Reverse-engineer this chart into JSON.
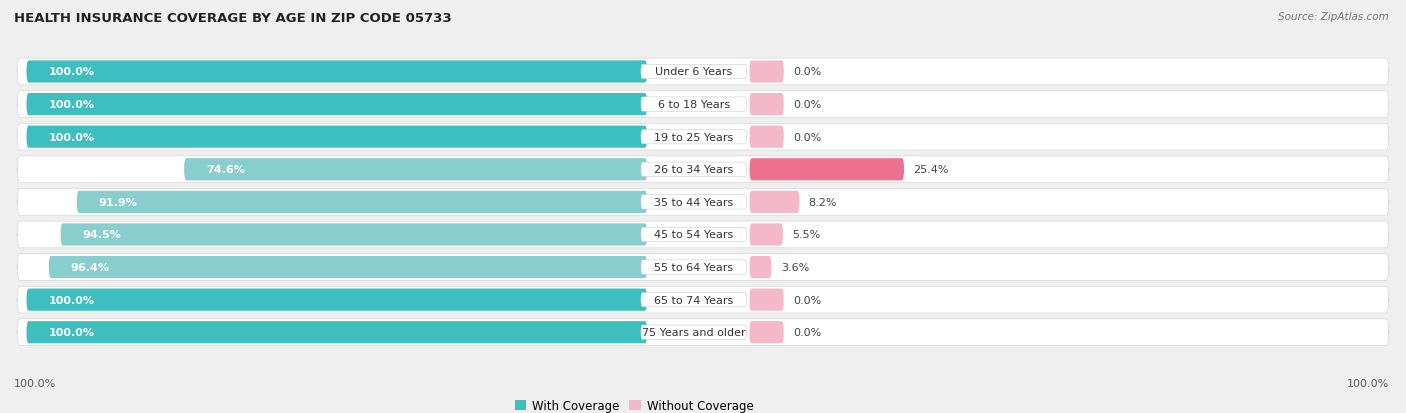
{
  "title": "HEALTH INSURANCE COVERAGE BY AGE IN ZIP CODE 05733",
  "source": "Source: ZipAtlas.com",
  "categories": [
    "Under 6 Years",
    "6 to 18 Years",
    "19 to 25 Years",
    "26 to 34 Years",
    "35 to 44 Years",
    "45 to 54 Years",
    "55 to 64 Years",
    "65 to 74 Years",
    "75 Years and older"
  ],
  "with_coverage": [
    100.0,
    100.0,
    100.0,
    74.6,
    91.9,
    94.5,
    96.4,
    100.0,
    100.0
  ],
  "without_coverage": [
    0.0,
    0.0,
    0.0,
    25.4,
    8.2,
    5.5,
    3.6,
    0.0,
    0.0
  ],
  "color_with_full": "#3DBFBF",
  "color_with_light": "#88CECE",
  "color_without_strong": "#EE7090",
  "color_without_light": "#F4B8C8",
  "legend_with": "With Coverage",
  "legend_without": "Without Coverage",
  "bg_color": "#efefef",
  "row_bg_color": "#ffffff",
  "row_border_color": "#d8d8d8"
}
